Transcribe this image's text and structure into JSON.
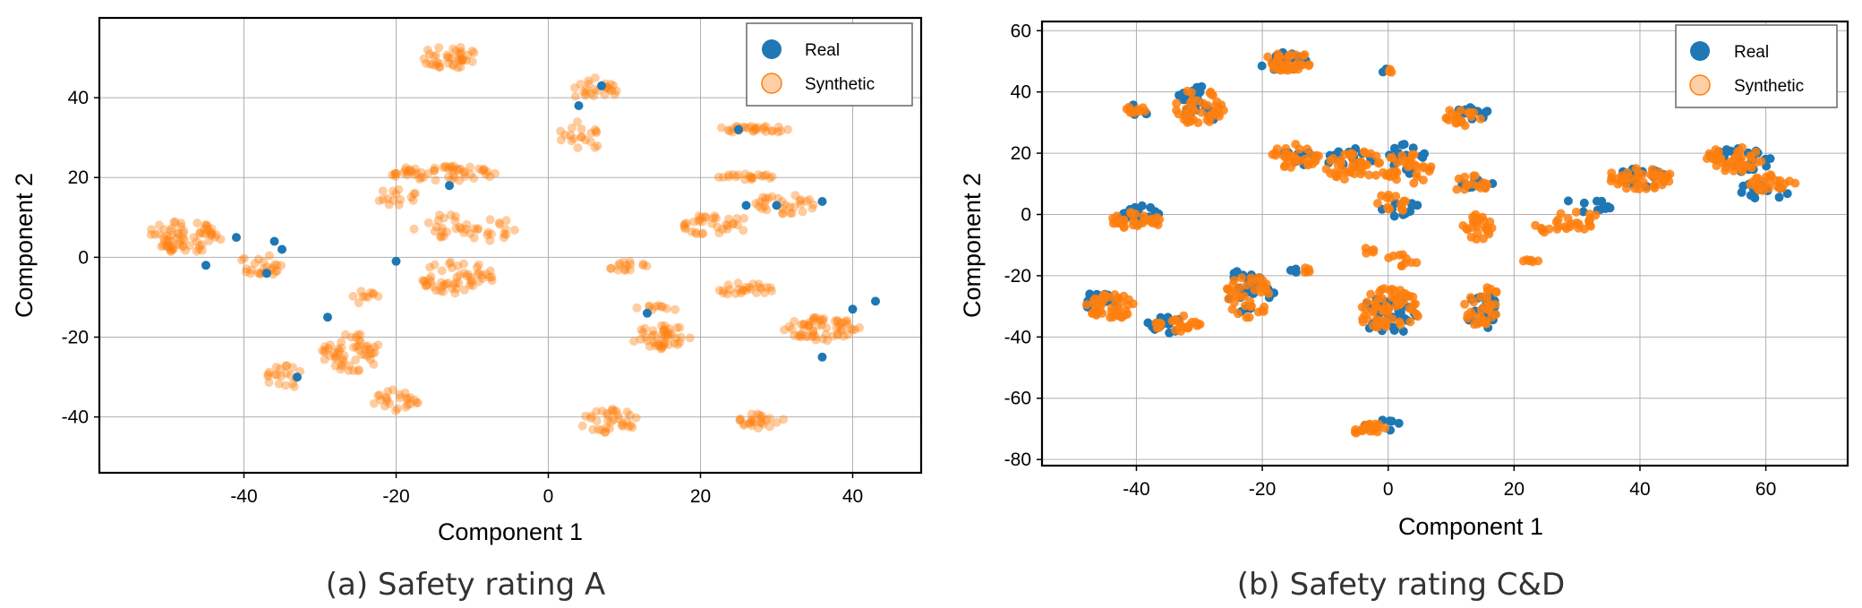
{
  "colors": {
    "real": "#1f77b4",
    "synthetic": "#ff7f0e",
    "axis": "#000000",
    "grid": "#b0b0b0"
  },
  "chart_data": [
    {
      "type": "scatter",
      "caption": "(a) Safety rating A",
      "xlabel": "Component 1",
      "ylabel": "Component 2",
      "xlim": [
        -59,
        49
      ],
      "ylim": [
        -54,
        60
      ],
      "xticks": [
        -40,
        -20,
        0,
        20,
        40
      ],
      "xtick_labels": [
        "-40",
        "-20",
        "0",
        "20",
        "40"
      ],
      "yticks": [
        -40,
        -20,
        0,
        20,
        40
      ],
      "ytick_labels": [
        "-40",
        "-20",
        "0",
        "20",
        "40"
      ],
      "grid": true,
      "legend": {
        "position": "top-right",
        "entries": [
          "Real",
          "Synthetic"
        ]
      },
      "series": [
        {
          "name": "Synthetic",
          "alpha": 0.4,
          "clusters": [
            [
              -48,
              5,
              5,
              4,
              70
            ],
            [
              -38,
              -2,
              3,
              3,
              25
            ],
            [
              -13,
              50,
              4,
              3,
              40
            ],
            [
              6,
              42,
              3,
              3,
              25
            ],
            [
              4,
              30,
              3,
              4,
              20
            ],
            [
              -14,
              21,
              7,
              2,
              55
            ],
            [
              -20,
              15,
              3,
              2,
              15
            ],
            [
              -14,
              8,
              4,
              3,
              20
            ],
            [
              -8,
              7,
              4,
              3,
              20
            ],
            [
              -12,
              -5,
              5,
              4,
              55
            ],
            [
              -24,
              -10,
              2,
              2,
              10
            ],
            [
              -26,
              -24,
              4,
              5,
              55
            ],
            [
              -20,
              -36,
              3,
              3,
              25
            ],
            [
              -35,
              -30,
              3,
              3,
              20
            ],
            [
              10,
              -2,
              3,
              2,
              15
            ],
            [
              15,
              -20,
              4,
              3,
              45
            ],
            [
              14,
              -13,
              3,
              1,
              10
            ],
            [
              27,
              32,
              5,
              1,
              30
            ],
            [
              26,
              20,
              4,
              1,
              20
            ],
            [
              22,
              8,
              5,
              3,
              35
            ],
            [
              31,
              13,
              4,
              3,
              30
            ],
            [
              26,
              -8,
              4,
              2,
              25
            ],
            [
              36,
              -18,
              5,
              3,
              60
            ],
            [
              8,
              -41,
              4,
              3,
              35
            ],
            [
              28,
              -41,
              3,
              2,
              25
            ]
          ]
        },
        {
          "name": "Real",
          "alpha": 1,
          "points": [
            [
              -45,
              -2
            ],
            [
              -41,
              5
            ],
            [
              -35,
              2
            ],
            [
              -37,
              -4
            ],
            [
              -29,
              -15
            ],
            [
              -33,
              -30
            ],
            [
              -13,
              18
            ],
            [
              -20,
              -1
            ],
            [
              4,
              38
            ],
            [
              7,
              43
            ],
            [
              13,
              -14
            ],
            [
              26,
              13
            ],
            [
              30,
              13
            ],
            [
              36,
              14
            ],
            [
              40,
              -13
            ],
            [
              43,
              -11
            ],
            [
              36,
              -25
            ],
            [
              25,
              32
            ],
            [
              -36,
              4
            ]
          ]
        }
      ]
    },
    {
      "type": "scatter",
      "caption": "(b) Safety rating C&D",
      "xlabel": "Component 1",
      "ylabel": "Component 2",
      "xlim": [
        -55,
        73
      ],
      "ylim": [
        -82,
        63
      ],
      "xticks": [
        -40,
        -20,
        0,
        20,
        40,
        60
      ],
      "xtick_labels": [
        "-40",
        "-20",
        "0",
        "20",
        "40",
        "60"
      ],
      "yticks": [
        -80,
        -60,
        -40,
        -20,
        0,
        20,
        40,
        60
      ],
      "ytick_labels": [
        "-80",
        "-60",
        "-40",
        "-20",
        "0",
        "20",
        "40",
        "60"
      ],
      "grid": true,
      "legend": {
        "position": "top-right",
        "entries": [
          "Real",
          "Synthetic"
        ]
      },
      "series": [
        {
          "name": "Real",
          "alpha": 1,
          "clusters": [
            [
              -17,
              50,
              4,
              3,
              20
            ],
            [
              -30,
              36,
              4,
              6,
              25
            ],
            [
              -40,
              34,
              2,
              2,
              6
            ],
            [
              -40,
              0,
              4,
              3,
              20
            ],
            [
              -46,
              -28,
              3,
              3,
              20
            ],
            [
              -35,
              -36,
              4,
              3,
              15
            ],
            [
              -22,
              -25,
              4,
              8,
              25
            ],
            [
              -14,
              19,
              3,
              3,
              10
            ],
            [
              -5,
              18,
              5,
              4,
              20
            ],
            [
              3,
              18,
              3,
              5,
              20
            ],
            [
              2,
              2,
              3,
              3,
              10
            ],
            [
              13,
              33,
              3,
              2,
              15
            ],
            [
              14,
              10,
              3,
              2,
              10
            ],
            [
              0,
              -33,
              5,
              6,
              40
            ],
            [
              15,
              -32,
              3,
              6,
              20
            ],
            [
              -1,
              -69,
              3,
              2,
              10
            ],
            [
              40,
              12,
              4,
              3,
              20
            ],
            [
              56,
              18,
              5,
              4,
              25
            ],
            [
              60,
              8,
              4,
              3,
              15
            ],
            [
              32,
              3,
              4,
              3,
              10
            ],
            [
              -15,
              -18,
              1,
              1,
              3
            ],
            [
              0,
              47,
              1,
              1,
              3
            ]
          ]
        },
        {
          "name": "Synthetic",
          "alpha": 0.85,
          "clusters": [
            [
              -16,
              50,
              4,
              3,
              35
            ],
            [
              -30,
              35,
              4,
              6,
              40
            ],
            [
              -40,
              34,
              2,
              2,
              10
            ],
            [
              -40,
              -2,
              4,
              3,
              35
            ],
            [
              -44,
              -30,
              4,
              4,
              45
            ],
            [
              -33,
              -36,
              4,
              3,
              25
            ],
            [
              -22,
              -27,
              4,
              7,
              40
            ],
            [
              -15,
              19,
              4,
              4,
              30
            ],
            [
              -5,
              16,
              5,
              5,
              40
            ],
            [
              3,
              15,
              4,
              5,
              35
            ],
            [
              1,
              4,
              3,
              3,
              15
            ],
            [
              12,
              32,
              3,
              3,
              20
            ],
            [
              13,
              10,
              3,
              3,
              15
            ],
            [
              14,
              -5,
              3,
              5,
              25
            ],
            [
              0,
              -31,
              5,
              7,
              65
            ],
            [
              15,
              -30,
              3,
              7,
              30
            ],
            [
              -3,
              -70,
              3,
              2,
              20
            ],
            [
              2,
              -15,
              3,
              2,
              10
            ],
            [
              -13,
              -18,
              1,
              1,
              5
            ],
            [
              -4,
              -12,
              2,
              1,
              5
            ],
            [
              23,
              -15,
              2,
              1,
              6
            ],
            [
              30,
              -2,
              4,
              3,
              20
            ],
            [
              40,
              12,
              5,
              4,
              40
            ],
            [
              55,
              18,
              5,
              4,
              40
            ],
            [
              61,
              10,
              4,
              3,
              25
            ],
            [
              0,
              47,
              1,
              1,
              4
            ],
            [
              25,
              -5,
              3,
              2,
              8
            ]
          ]
        }
      ]
    }
  ]
}
